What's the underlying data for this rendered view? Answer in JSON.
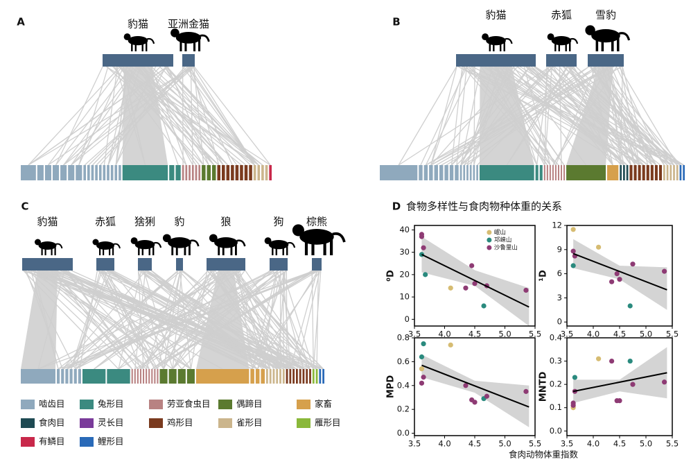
{
  "panels": [
    {
      "letter": "A",
      "predators": [
        "豹猫",
        "亚洲金猫"
      ]
    },
    {
      "letter": "B",
      "predators": [
        "豹猫",
        "赤狐",
        "雪豹"
      ]
    },
    {
      "letter": "C",
      "predators": [
        "豹猫",
        "赤狐",
        "猞猁",
        "豹",
        "狼",
        "狗",
        "棕熊"
      ]
    }
  ],
  "legend": [
    {
      "name": "啮齿目",
      "color": "#8fa9bd"
    },
    {
      "name": "兔形目",
      "color": "#3b8a80"
    },
    {
      "name": "劳亚食虫目",
      "color": "#b88282"
    },
    {
      "name": "偶蹄目",
      "color": "#5b7a30"
    },
    {
      "name": "家畜",
      "color": "#d6a04c"
    },
    {
      "name": "食肉目",
      "color": "#1e4a52"
    },
    {
      "name": "灵长目",
      "color": "#7a3b9a"
    },
    {
      "name": "鸡形目",
      "color": "#7a3a1e"
    },
    {
      "name": "雀形目",
      "color": "#cbb58c"
    },
    {
      "name": "雁形目",
      "color": "#8ab83a"
    },
    {
      "name": "有鳞目",
      "color": "#c8284a"
    },
    {
      "name": "鲤形目",
      "color": "#2a6ab8"
    }
  ],
  "panel_d": {
    "letter": "D",
    "title": "食物多样性与食肉物种体重的关系",
    "x_label": "食肉动物体重指数"
  },
  "chart_data": [
    {
      "type": "scatter",
      "y_label": "⁰D",
      "legend": "top-right",
      "xlim": [
        3.5,
        5.5
      ],
      "xticks": [
        3.5,
        {
          "value": 4,
          "label": "4.0"
        },
        4.5,
        {
          "value": 5,
          "label": "5.0"
        },
        5.5
      ],
      "ylim": [
        -3,
        42
      ],
      "yticks": [
        0,
        10,
        20,
        30,
        40
      ],
      "series": [
        {
          "name": "岷山",
          "color": "#d6bc72",
          "x": [
            4.1
          ],
          "values": [
            14
          ]
        },
        {
          "name": "邛崃山",
          "color": "#2a8a7e",
          "x": [
            3.62,
            3.68,
            4.65
          ],
          "values": [
            29,
            20,
            6
          ]
        },
        {
          "name": "沙鲁里山",
          "color": "#8e3b74",
          "x": [
            3.62,
            3.62,
            3.65,
            4.35,
            4.45,
            4.5,
            4.7,
            5.35
          ],
          "values": [
            38,
            37,
            32,
            14,
            24,
            16,
            15,
            13
          ]
        }
      ],
      "trend": {
        "x": [
          3.62,
          5.4
        ],
        "values": [
          29,
          5.5
        ]
      },
      "band": {
        "x": [
          3.62,
          4.5,
          5.4
        ],
        "lower": [
          21,
          15,
          -3
        ],
        "upper": [
          37,
          22,
          14
        ]
      }
    },
    {
      "type": "scatter",
      "y_label": "¹D",
      "xlim": [
        3.5,
        5.5
      ],
      "xticks": [
        3.5,
        {
          "value": 4,
          "label": "4.0"
        },
        4.5,
        {
          "value": 5,
          "label": "5.0"
        },
        5.5
      ],
      "ylim": [
        -0.5,
        12
      ],
      "yticks": [
        0,
        3,
        6,
        9,
        12
      ],
      "series": [
        {
          "color": "#d6bc72",
          "x": [
            3.62,
            4.1
          ],
          "values": [
            11.5,
            9.3
          ]
        },
        {
          "color": "#2a8a7e",
          "x": [
            3.62,
            4.7
          ],
          "values": [
            7,
            2
          ]
        },
        {
          "color": "#8e3b74",
          "x": [
            3.62,
            3.65,
            4.35,
            4.45,
            4.5,
            4.75,
            5.35
          ],
          "values": [
            8.8,
            8.2,
            5,
            6,
            5.3,
            7.2,
            6.3
          ]
        }
      ],
      "trend": {
        "x": [
          3.62,
          5.4
        ],
        "values": [
          8.5,
          4
        ]
      },
      "band": {
        "x": [
          3.62,
          4.5,
          5.4
        ],
        "lower": [
          6.7,
          5.3,
          1.5
        ],
        "upper": [
          10.3,
          7,
          6.8
        ]
      }
    },
    {
      "type": "scatter",
      "y_label": "MPD",
      "xlim": [
        3.5,
        5.5
      ],
      "xticks": [
        3.5,
        {
          "value": 4,
          "label": "4.0"
        },
        4.5,
        {
          "value": 5,
          "label": "5.0"
        },
        5.5
      ],
      "ylim": [
        -0.02,
        0.8
      ],
      "yticks": [
        {
          "value": 0,
          "label": "0.0"
        },
        0.2,
        0.4,
        0.6,
        0.8
      ],
      "series": [
        {
          "color": "#d6bc72",
          "x": [
            3.62,
            4.1
          ],
          "values": [
            0.54,
            0.74
          ]
        },
        {
          "color": "#2a8a7e",
          "x": [
            3.62,
            3.65,
            4.65
          ],
          "values": [
            0.64,
            0.75,
            0.29
          ]
        },
        {
          "color": "#8e3b74",
          "x": [
            3.62,
            3.65,
            4.35,
            4.45,
            4.5,
            4.7,
            5.35
          ],
          "values": [
            0.42,
            0.47,
            0.4,
            0.28,
            0.26,
            0.31,
            0.35
          ]
        }
      ],
      "trend": {
        "x": [
          3.62,
          5.4
        ],
        "values": [
          0.57,
          0.22
        ]
      },
      "band": {
        "x": [
          3.62,
          4.5,
          5.4
        ],
        "lower": [
          0.47,
          0.34,
          0.05
        ],
        "upper": [
          0.66,
          0.44,
          0.4
        ]
      }
    },
    {
      "type": "scatter",
      "y_label": "MNTD",
      "xlim": [
        3.5,
        5.5
      ],
      "xticks": [
        3.5,
        {
          "value": 4,
          "label": "4.0"
        },
        4.5,
        {
          "value": 5,
          "label": "5.0"
        },
        5.5
      ],
      "ylim": [
        -0.02,
        0.4
      ],
      "yticks": [
        {
          "value": 0,
          "label": "0.0"
        },
        0.1,
        0.2,
        0.3,
        0.4
      ],
      "series": [
        {
          "color": "#d6bc72",
          "x": [
            3.62,
            4.1
          ],
          "values": [
            0.1,
            0.31
          ]
        },
        {
          "color": "#2a8a7e",
          "x": [
            3.65,
            4.7
          ],
          "values": [
            0.23,
            0.3
          ]
        },
        {
          "color": "#8e3b74",
          "x": [
            3.62,
            3.62,
            3.65,
            4.35,
            4.45,
            4.5,
            4.75,
            5.35
          ],
          "values": [
            0.12,
            0.11,
            0.17,
            0.3,
            0.13,
            0.13,
            0.2,
            0.21
          ]
        }
      ],
      "trend": {
        "x": [
          3.62,
          5.4
        ],
        "values": [
          0.17,
          0.25
        ]
      },
      "band": {
        "x": [
          3.62,
          4.5,
          5.4
        ],
        "lower": [
          0.12,
          0.17,
          0.14
        ],
        "upper": [
          0.22,
          0.22,
          0.36
        ]
      }
    }
  ]
}
